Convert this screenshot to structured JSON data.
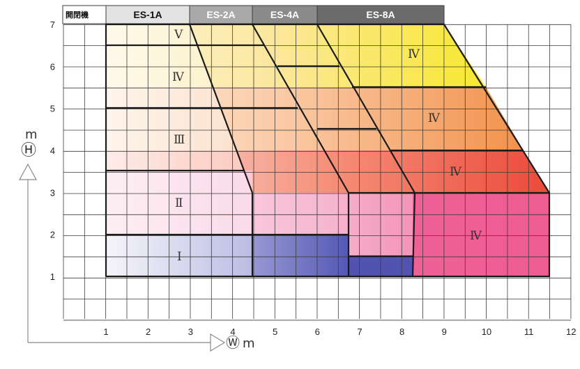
{
  "header": {
    "corner_label": "開閉機",
    "tabs": [
      {
        "label": "ES-1A",
        "color": "#e3e3e3",
        "text_color": "#111111"
      },
      {
        "label": "ES-2A",
        "color": "#a9a9a9",
        "text_color": "#ffffff"
      },
      {
        "label": "ES-4A",
        "color": "#8a8a8a",
        "text_color": "#ffffff"
      },
      {
        "label": "ES-8A",
        "color": "#6b6b6b",
        "text_color": "#ffffff"
      }
    ]
  },
  "axes": {
    "y_unit": "m",
    "y_symbol": "Ⓗ",
    "x_symbol": "Ⓦ",
    "x_unit": "m",
    "x_ticks": [
      "1",
      "2",
      "3",
      "4",
      "5",
      "6",
      "7",
      "8",
      "9",
      "10",
      "11",
      "12"
    ],
    "y_ticks": [
      "1",
      "2",
      "3",
      "4",
      "5",
      "6",
      "7"
    ]
  },
  "zone_labels": {
    "es1": [
      "V",
      "Ⅳ",
      "Ⅲ",
      "Ⅱ",
      "Ⅰ"
    ],
    "es8": [
      "Ⅳ",
      "Ⅳ",
      "Ⅳ",
      "Ⅳ"
    ]
  },
  "colors": {
    "grid": "#3a3a3a",
    "outline": "#1a1a1a",
    "yellow": "#f8ea3a",
    "orange": "#f3a265",
    "red": "#ee5548",
    "pink": "#ee4f8a",
    "pale_pink": "#f7c6dc",
    "blue": "#5b5cb8",
    "pale_blue": "#d2d6ee"
  }
}
